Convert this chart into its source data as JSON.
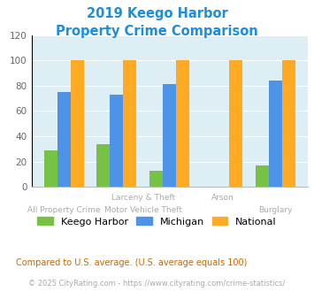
{
  "title_line1": "2019 Keego Harbor",
  "title_line2": "Property Crime Comparison",
  "title_color": "#1a8fe0",
  "categories": [
    "All Property Crime",
    "Larceny & Theft",
    "Motor Vehicle Theft",
    "Arson",
    "Burglary"
  ],
  "keego_harbor": [
    29,
    34,
    13,
    0,
    17
  ],
  "michigan": [
    75,
    73,
    81,
    0,
    84
  ],
  "national": [
    100,
    100,
    100,
    100,
    100
  ],
  "keego_color": "#77c244",
  "michigan_color": "#4d94e8",
  "national_color": "#ffaa22",
  "plot_bg": "#ddeef4",
  "ylim": [
    0,
    120
  ],
  "yticks": [
    0,
    20,
    40,
    60,
    80,
    100,
    120
  ],
  "legend_labels": [
    "Keego Harbor",
    "Michigan",
    "National"
  ],
  "footnote1": "Compared to U.S. average. (U.S. average equals 100)",
  "footnote2": "© 2025 CityRating.com - https://www.cityrating.com/crime-statistics/",
  "footnote1_color": "#cc6600",
  "footnote2_color": "#aaaaaa",
  "bar_width": 0.25,
  "grid_color": "#ffffff",
  "tick_label_color": "#aaaaaa",
  "xlabel_top_color": "#aaaaaa",
  "xlabel_bot_color": "#aaaaaa"
}
